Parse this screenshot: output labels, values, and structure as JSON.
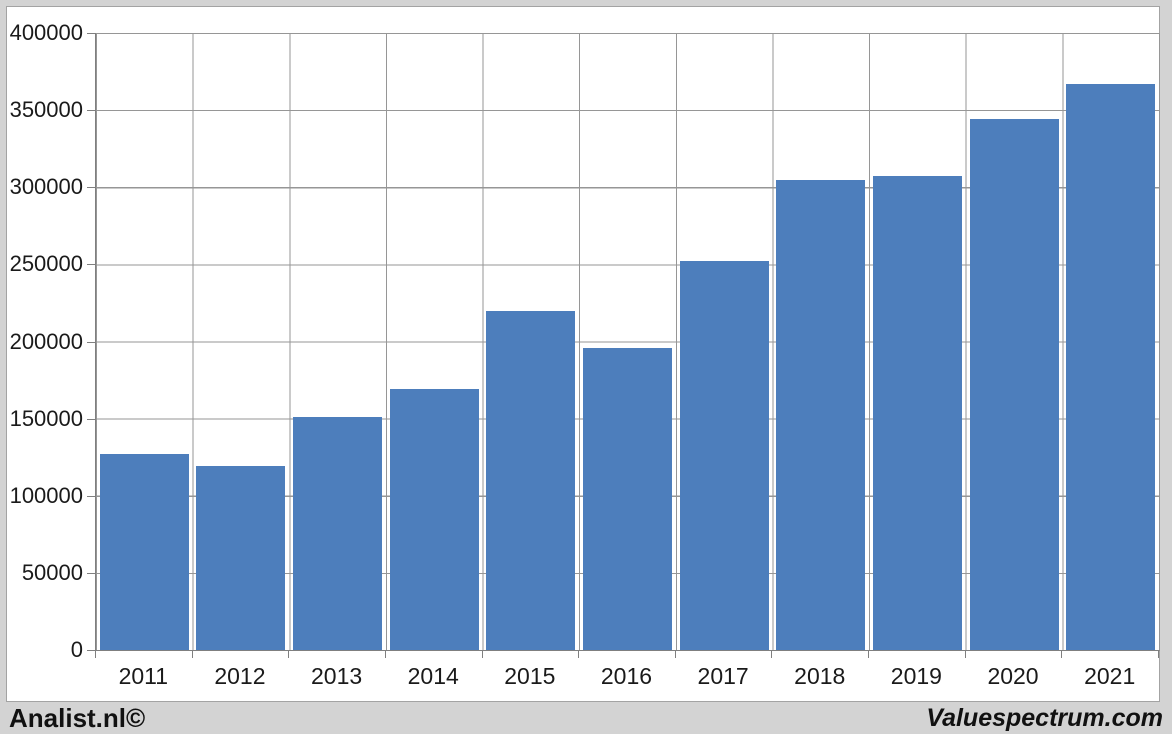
{
  "footer": {
    "left_brand": "Analist.nl©",
    "right_brand": "Valuespectrum.com"
  },
  "chart_data": {
    "type": "bar",
    "title": "",
    "xlabel": "",
    "ylabel": "",
    "categories": [
      "2011",
      "2012",
      "2013",
      "2014",
      "2015",
      "2016",
      "2017",
      "2018",
      "2019",
      "2020",
      "2021"
    ],
    "values": [
      127000,
      119000,
      151000,
      169000,
      220000,
      196000,
      252000,
      305000,
      307000,
      344000,
      367000
    ],
    "ylim": [
      0,
      400000
    ],
    "ytick_step": 50000,
    "ytick_labels": [
      "0",
      "50000",
      "100000",
      "150000",
      "200000",
      "250000",
      "300000",
      "350000",
      "400000"
    ],
    "grid": true,
    "legend": null,
    "bar_color": "#4d7ebc",
    "gridline_color": "#969696",
    "axis_color": "#7f7f7f",
    "background_color": "#d3d3d3"
  }
}
